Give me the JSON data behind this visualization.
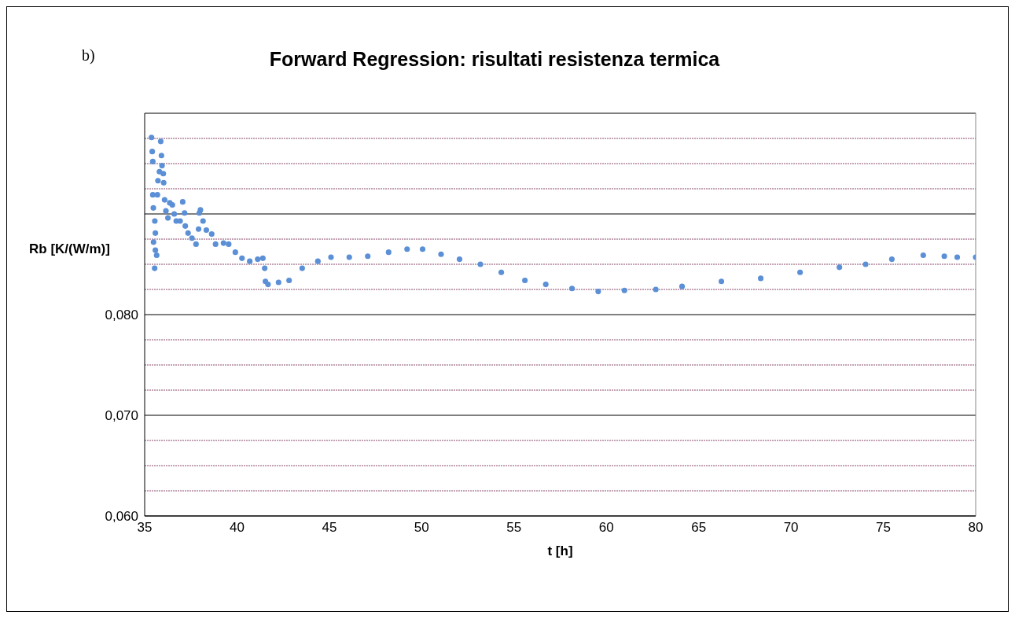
{
  "chart_data": {
    "type": "scatter",
    "title": "Forward Regression: risultati resistenza termica",
    "xlabel": "t [h]",
    "ylabel": "Rb [K/(W/m)]",
    "annotations": [
      "b)"
    ],
    "xlim": [
      35,
      80
    ],
    "xticks": [
      35,
      40,
      45,
      50,
      55,
      60,
      65,
      70,
      75,
      80
    ],
    "ylim": [
      0.06,
      0.1
    ],
    "yticks": [
      {
        "value": 0.06,
        "label": "0,060"
      },
      {
        "value": 0.0625,
        "label": null
      },
      {
        "value": 0.065,
        "label": null
      },
      {
        "value": 0.0675,
        "label": null
      },
      {
        "value": 0.07,
        "label": "0,070"
      },
      {
        "value": 0.0725,
        "label": null
      },
      {
        "value": 0.075,
        "label": null
      },
      {
        "value": 0.0775,
        "label": null
      },
      {
        "value": 0.08,
        "label": "0,080"
      },
      {
        "value": 0.0825,
        "label": null
      },
      {
        "value": 0.085,
        "label": null
      },
      {
        "value": 0.0875,
        "label": null
      },
      {
        "value": 0.09,
        "label": null
      },
      {
        "value": 0.0925,
        "label": null
      },
      {
        "value": 0.095,
        "label": null
      },
      {
        "value": 0.0975,
        "label": null
      },
      {
        "value": 0.1,
        "label": null
      }
    ],
    "grid": "y",
    "legend": false,
    "marker": "circle",
    "series": [
      {
        "color": "#5b8fd6",
        "x": [
          35.37,
          35.41,
          35.44,
          35.44,
          35.47,
          35.48,
          35.54,
          35.55,
          35.58,
          35.58,
          35.65,
          35.69,
          35.72,
          35.8,
          35.87,
          35.91,
          35.94,
          36.01,
          36.03,
          36.08,
          36.15,
          36.26,
          36.36,
          36.5,
          36.6,
          36.71,
          36.92,
          37.06,
          37.16,
          37.2,
          37.35,
          37.56,
          37.78,
          37.92,
          37.96,
          38.02,
          38.16,
          38.34,
          38.63,
          38.84,
          39.27,
          39.55,
          39.91,
          40.27,
          40.69,
          41.12,
          41.4,
          41.5,
          41.54,
          41.68,
          42.25,
          42.82,
          43.53,
          44.38,
          45.09,
          46.08,
          47.08,
          48.21,
          49.21,
          50.05,
          51.05,
          52.05,
          53.18,
          54.31,
          55.59,
          56.72,
          58.14,
          59.56,
          60.98,
          62.68,
          64.1,
          66.23,
          68.36,
          70.49,
          72.62,
          74.04,
          75.46,
          77.16,
          78.3,
          79.0,
          80.0
        ],
        "values": [
          0.0976,
          0.0962,
          0.0952,
          0.0919,
          0.0906,
          0.0872,
          0.0846,
          0.0893,
          0.0881,
          0.0864,
          0.0859,
          0.0919,
          0.0933,
          0.0942,
          0.0972,
          0.0958,
          0.0948,
          0.094,
          0.0931,
          0.0914,
          0.0903,
          0.0896,
          0.0911,
          0.0909,
          0.09,
          0.0893,
          0.0893,
          0.0912,
          0.0901,
          0.0888,
          0.0881,
          0.0876,
          0.087,
          0.0885,
          0.0901,
          0.0904,
          0.0893,
          0.0884,
          0.088,
          0.087,
          0.0871,
          0.087,
          0.0862,
          0.0856,
          0.0853,
          0.0855,
          0.0856,
          0.0846,
          0.0833,
          0.083,
          0.0832,
          0.0834,
          0.0846,
          0.0853,
          0.0857,
          0.0857,
          0.0858,
          0.0862,
          0.0865,
          0.0865,
          0.086,
          0.0855,
          0.085,
          0.0842,
          0.0834,
          0.083,
          0.0826,
          0.0823,
          0.0824,
          0.0825,
          0.0828,
          0.0833,
          0.0836,
          0.0842,
          0.0847,
          0.085,
          0.0855,
          0.0859,
          0.0858,
          0.0857,
          0.0857
        ]
      }
    ]
  }
}
